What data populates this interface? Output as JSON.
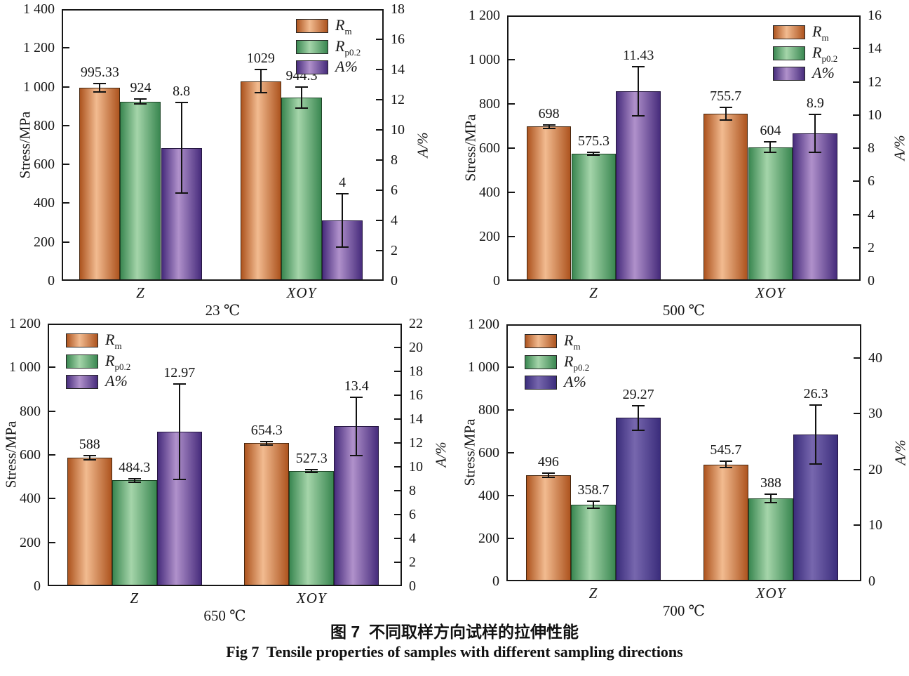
{
  "figure": {
    "caption_zh": "图 7  不同取样方向试样的拉伸性能",
    "caption_en": "Fig 7  Tensile properties of samples with different sampling directions"
  },
  "series": [
    {
      "key": "Rm",
      "legend_main": "R",
      "legend_sub": "m",
      "edge": "#ad541f",
      "mid": "#f2bb90",
      "border": "#45260e"
    },
    {
      "key": "Rp0.2",
      "legend_main": "R",
      "legend_sub": "p0.2",
      "edge": "#3a8751",
      "mid": "#a5d5aa",
      "border": "#1e4527"
    },
    {
      "key": "A%",
      "legend_main": "A%",
      "legend_sub": "",
      "edge": "#472c7c",
      "mid": "#b091cb",
      "border": "#241540"
    }
  ],
  "chart_data": [
    {
      "type": "bar",
      "temp_label": "23 ℃",
      "legend_pos": "top-right",
      "left_axis": {
        "title": "Stress/MPa",
        "max": 1400,
        "ticks": [
          {
            "v": 0,
            "t": "0"
          },
          {
            "v": 200,
            "t": "200"
          },
          {
            "v": 400,
            "t": "400"
          },
          {
            "v": 600,
            "t": "600"
          },
          {
            "v": 800,
            "t": "800"
          },
          {
            "v": 1000,
            "t": "1 000"
          },
          {
            "v": 1200,
            "t": "1 200"
          },
          {
            "v": 1400,
            "t": "1 400"
          }
        ]
      },
      "right_axis": {
        "title": "A/%",
        "max": 18,
        "ticks": [
          {
            "v": 0,
            "t": "0"
          },
          {
            "v": 2,
            "t": "2"
          },
          {
            "v": 4,
            "t": "4"
          },
          {
            "v": 6,
            "t": "6"
          },
          {
            "v": 8,
            "t": "8"
          },
          {
            "v": 10,
            "t": "10"
          },
          {
            "v": 12,
            "t": "12"
          },
          {
            "v": 14,
            "t": "14"
          },
          {
            "v": 16,
            "t": "16"
          },
          {
            "v": 18,
            "t": "18"
          }
        ]
      },
      "groups": [
        {
          "label": "Z",
          "bars": [
            {
              "value": 995.33,
              "label": "995.33",
              "err": 22
            },
            {
              "value": 924,
              "label": "924",
              "err": 12
            },
            {
              "value": 8.8,
              "label": "8.8",
              "err": 3.0
            }
          ]
        },
        {
          "label": "XOY",
          "bars": [
            {
              "value": 1029,
              "label": "1029",
              "err": 60
            },
            {
              "value": 944.3,
              "label": "944.3",
              "err": 56
            },
            {
              "value": 4,
              "label": "4",
              "err": 1.75
            }
          ]
        }
      ]
    },
    {
      "type": "bar",
      "temp_label": "500 ℃",
      "legend_pos": "top-right",
      "left_axis": {
        "title": "Stress/MPa",
        "max": 1200,
        "ticks": [
          {
            "v": 0,
            "t": "0"
          },
          {
            "v": 200,
            "t": "200"
          },
          {
            "v": 400,
            "t": "400"
          },
          {
            "v": 600,
            "t": "600"
          },
          {
            "v": 800,
            "t": "800"
          },
          {
            "v": 1000,
            "t": "1 000"
          },
          {
            "v": 1200,
            "t": "1 200"
          }
        ]
      },
      "right_axis": {
        "title": "A/%",
        "max": 16,
        "ticks": [
          {
            "v": 0,
            "t": "0"
          },
          {
            "v": 2,
            "t": "2"
          },
          {
            "v": 4,
            "t": "4"
          },
          {
            "v": 6,
            "t": "6"
          },
          {
            "v": 8,
            "t": "8"
          },
          {
            "v": 10,
            "t": "10"
          },
          {
            "v": 12,
            "t": "12"
          },
          {
            "v": 14,
            "t": "14"
          },
          {
            "v": 16,
            "t": "16"
          }
        ]
      },
      "groups": [
        {
          "label": "Z",
          "bars": [
            {
              "value": 698,
              "label": "698",
              "err": 8
            },
            {
              "value": 575.3,
              "label": "575.3",
              "err": 6
            },
            {
              "value": 11.43,
              "label": "11.43",
              "err": 1.5
            }
          ]
        },
        {
          "label": "XOY",
          "bars": [
            {
              "value": 755.7,
              "label": "755.7",
              "err": 30
            },
            {
              "value": 604,
              "label": "604",
              "err": 24
            },
            {
              "value": 8.9,
              "label": "8.9",
              "err": 1.15
            }
          ]
        }
      ]
    },
    {
      "type": "bar",
      "temp_label": "650 ℃",
      "legend_pos": "top-left",
      "left_axis": {
        "title": "Stress/MPa",
        "max": 1200,
        "ticks": [
          {
            "v": 0,
            "t": "0"
          },
          {
            "v": 200,
            "t": "200"
          },
          {
            "v": 400,
            "t": "400"
          },
          {
            "v": 600,
            "t": "600"
          },
          {
            "v": 800,
            "t": "800"
          },
          {
            "v": 1000,
            "t": "1 000"
          },
          {
            "v": 1200,
            "t": "1 200"
          }
        ]
      },
      "right_axis": {
        "title": "A/%",
        "max": 22,
        "ticks": [
          {
            "v": 0,
            "t": "0"
          },
          {
            "v": 2,
            "t": "2"
          },
          {
            "v": 4,
            "t": "4"
          },
          {
            "v": 6,
            "t": "6"
          },
          {
            "v": 8,
            "t": "8"
          },
          {
            "v": 10,
            "t": "10"
          },
          {
            "v": 12,
            "t": "12"
          },
          {
            "v": 14,
            "t": "14"
          },
          {
            "v": 16,
            "t": "16"
          },
          {
            "v": 18,
            "t": "18"
          },
          {
            "v": 20,
            "t": "20"
          },
          {
            "v": 22,
            "t": "22"
          }
        ]
      },
      "groups": [
        {
          "label": "Z",
          "bars": [
            {
              "value": 588,
              "label": "588",
              "err": 10
            },
            {
              "value": 484.3,
              "label": "484.3",
              "err": 8
            },
            {
              "value": 12.97,
              "label": "12.97",
              "err": 4.0
            }
          ]
        },
        {
          "label": "XOY",
          "bars": [
            {
              "value": 654.3,
              "label": "654.3",
              "err": 8
            },
            {
              "value": 527.3,
              "label": "527.3",
              "err": 6
            },
            {
              "value": 13.4,
              "label": "13.4",
              "err": 2.45
            }
          ]
        }
      ]
    },
    {
      "type": "bar",
      "temp_label": "700 ℃",
      "legend_pos": "top-left",
      "a_color_override": {
        "edge": "#3b2d7c",
        "mid": "#7767ae"
      },
      "left_axis": {
        "title": "Stress/MPa",
        "max": 1200,
        "ticks": [
          {
            "v": 0,
            "t": "0"
          },
          {
            "v": 200,
            "t": "200"
          },
          {
            "v": 400,
            "t": "400"
          },
          {
            "v": 600,
            "t": "600"
          },
          {
            "v": 800,
            "t": "800"
          },
          {
            "v": 1000,
            "t": "1 000"
          },
          {
            "v": 1200,
            "t": "1 200"
          }
        ]
      },
      "right_axis": {
        "title": "A/%",
        "max": 46,
        "ticks": [
          {
            "v": 0,
            "t": "0"
          },
          {
            "v": 10,
            "t": "10"
          },
          {
            "v": 20,
            "t": "20"
          },
          {
            "v": 30,
            "t": "30"
          },
          {
            "v": 40,
            "t": "40"
          }
        ]
      },
      "groups": [
        {
          "label": "Z",
          "bars": [
            {
              "value": 496,
              "label": "496",
              "err": 10
            },
            {
              "value": 358.7,
              "label": "358.7",
              "err": 16
            },
            {
              "value": 29.27,
              "label": "29.27",
              "err": 2.2
            }
          ]
        },
        {
          "label": "XOY",
          "bars": [
            {
              "value": 545.7,
              "label": "545.7",
              "err": 14
            },
            {
              "value": 388,
              "label": "388",
              "err": 20
            },
            {
              "value": 26.3,
              "label": "26.3",
              "err": 5.3
            }
          ]
        }
      ]
    }
  ]
}
